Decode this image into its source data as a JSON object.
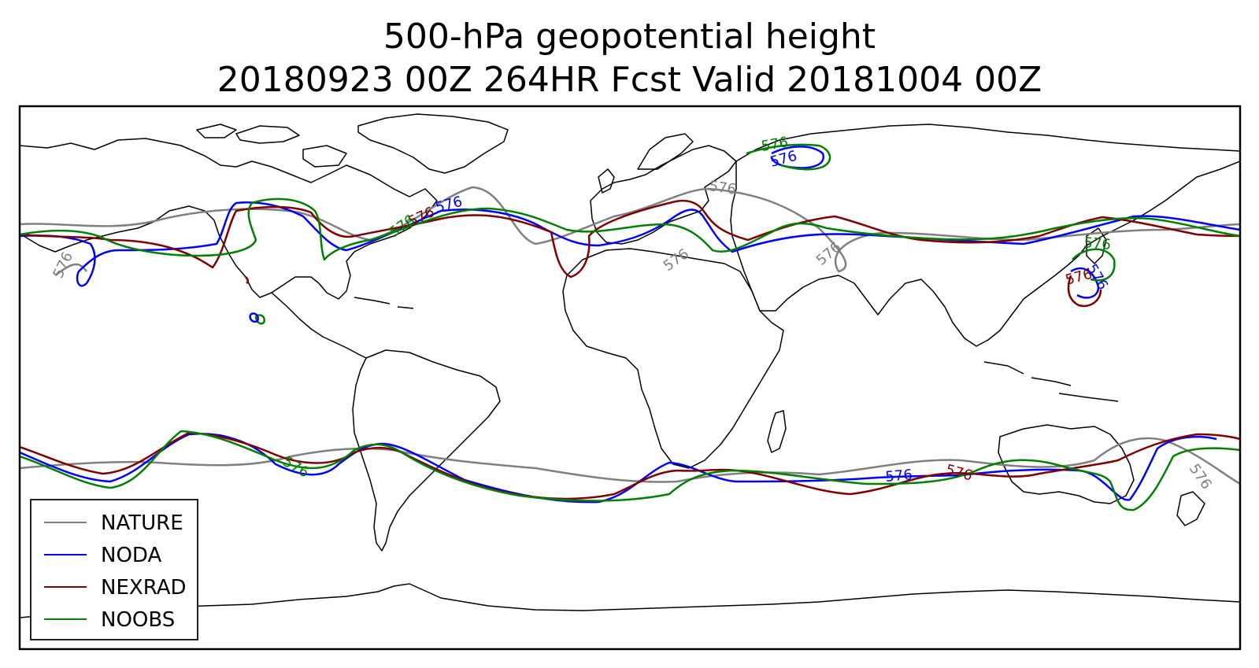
{
  "title_line1": "500-hPa geopotential height",
  "title_line2": "20180923 00Z 264HR Fcst Valid 20181004 00Z",
  "contour_label": "576",
  "legend": [
    {
      "label": "NATURE",
      "color": "#808080"
    },
    {
      "label": "NODA",
      "color": "#0000ff"
    },
    {
      "label": "NEXRAD",
      "color": "#800000"
    },
    {
      "label": "NOOBS",
      "color": "#008000"
    }
  ],
  "map": {
    "projection": "cylindrical",
    "extent": "global",
    "coastlines": true,
    "country_borders": true
  }
}
